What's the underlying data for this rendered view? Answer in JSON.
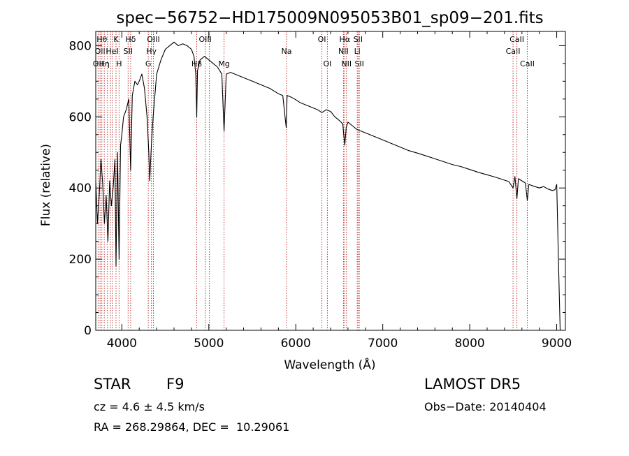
{
  "chart_data": {
    "type": "line",
    "title": "spec−56752−HD175009N095053B01_sp09−201.fits",
    "xlabel": "Wavelength (Å)",
    "ylabel": "Flux (relative)",
    "xlim": [
      3700,
      9100
    ],
    "ylim": [
      0,
      840
    ],
    "x_ticks": [
      4000,
      5000,
      6000,
      7000,
      8000,
      9000
    ],
    "y_ticks": [
      0,
      200,
      400,
      600,
      800
    ],
    "grid": false,
    "line_color": "#000000",
    "marker_color": "#c03030",
    "series": [
      {
        "x": [
          3700,
          3720,
          3740,
          3760,
          3780,
          3800,
          3820,
          3840,
          3860,
          3880,
          3900,
          3920,
          3933,
          3950,
          3968,
          3985,
          4000,
          4020,
          4050,
          4080,
          4101,
          4120,
          4150,
          4180,
          4200,
          4230,
          4260,
          4290,
          4310,
          4320,
          4340,
          4360,
          4400,
          4450,
          4500,
          4550,
          4600,
          4650,
          4700,
          4750,
          4800,
          4830,
          4850,
          4861,
          4870,
          4900,
          4950,
          5000,
          5050,
          5100,
          5150,
          5175,
          5200,
          5250,
          5300,
          5400,
          5500,
          5600,
          5700,
          5800,
          5850,
          5890,
          5895,
          5900,
          5950,
          6000,
          6050,
          6100,
          6150,
          6200,
          6250,
          6300,
          6350,
          6400,
          6450,
          6500,
          6540,
          6563,
          6580,
          6600,
          6650,
          6700,
          6800,
          6900,
          7000,
          7100,
          7200,
          7300,
          7400,
          7500,
          7600,
          7700,
          7800,
          7900,
          8000,
          8100,
          8200,
          8300,
          8400,
          8450,
          8498,
          8520,
          8542,
          8560,
          8600,
          8640,
          8662,
          8680,
          8750,
          8800,
          8850,
          8900,
          8950,
          8980,
          9000,
          9020,
          9040
        ],
        "y": [
          420,
          300,
          380,
          480,
          410,
          300,
          380,
          250,
          420,
          350,
          400,
          480,
          180,
          500,
          200,
          520,
          550,
          600,
          620,
          650,
          450,
          660,
          700,
          690,
          700,
          720,
          680,
          600,
          500,
          420,
          520,
          600,
          720,
          760,
          790,
          800,
          810,
          800,
          805,
          800,
          790,
          770,
          720,
          600,
          730,
          760,
          770,
          760,
          750,
          740,
          720,
          560,
          720,
          725,
          720,
          710,
          700,
          690,
          680,
          665,
          660,
          570,
          620,
          660,
          655,
          648,
          640,
          635,
          630,
          625,
          620,
          612,
          620,
          615,
          600,
          590,
          580,
          520,
          570,
          585,
          575,
          565,
          555,
          545,
          535,
          525,
          515,
          505,
          498,
          490,
          482,
          474,
          466,
          460,
          452,
          444,
          437,
          430,
          422,
          418,
          400,
          432,
          370,
          426,
          420,
          414,
          365,
          410,
          404,
          400,
          404,
          397,
          393,
          395,
          410,
          200,
          0
        ]
      }
    ],
    "line_markers": [
      {
        "x": 3727,
        "label": "OII",
        "row": 2
      },
      {
        "x": 3750,
        "label": "OII",
        "row": 1
      },
      {
        "x": 3770,
        "label": "Hθ",
        "row": 0
      },
      {
        "x": 3798,
        "label": "Hη",
        "row": 2
      },
      {
        "x": 3835,
        "label": "",
        "row": 0
      },
      {
        "x": 3869,
        "label": "",
        "row": 0
      },
      {
        "x": 3889,
        "label": "HeI",
        "row": 1
      },
      {
        "x": 3933,
        "label": "K",
        "row": 0
      },
      {
        "x": 3968,
        "label": "H",
        "row": 2
      },
      {
        "x": 4072,
        "label": "SII",
        "row": 1
      },
      {
        "x": 4101,
        "label": "Hδ",
        "row": 0
      },
      {
        "x": 4304,
        "label": "G",
        "row": 2
      },
      {
        "x": 4340,
        "label": "Hγ",
        "row": 1
      },
      {
        "x": 4363,
        "label": "OIII",
        "row": 0
      },
      {
        "x": 4861,
        "label": "Hβ",
        "row": 2
      },
      {
        "x": 4959,
        "label": "OIII",
        "row": 0
      },
      {
        "x": 5007,
        "label": "",
        "row": 0
      },
      {
        "x": 5175,
        "label": "Mg",
        "row": 2
      },
      {
        "x": 5894,
        "label": "Na",
        "row": 1
      },
      {
        "x": 6300,
        "label": "OI",
        "row": 0
      },
      {
        "x": 6363,
        "label": "OI",
        "row": 2
      },
      {
        "x": 6548,
        "label": "NII",
        "row": 1
      },
      {
        "x": 6563,
        "label": "Hα",
        "row": 0
      },
      {
        "x": 6583,
        "label": "NII",
        "row": 2
      },
      {
        "x": 6707,
        "label": "Li",
        "row": 1
      },
      {
        "x": 6716,
        "label": "SII",
        "row": 0
      },
      {
        "x": 6731,
        "label": "SII",
        "row": 2
      },
      {
        "x": 8498,
        "label": "CaII",
        "row": 1
      },
      {
        "x": 8542,
        "label": "CaII",
        "row": 0
      },
      {
        "x": 8662,
        "label": "CaII",
        "row": 2
      }
    ]
  },
  "info": {
    "object_class": "STAR",
    "subclass": "F9",
    "survey": "LAMOST DR5",
    "redshift": "cz = 4.6 ± 4.5 km/s",
    "obs_date": "Obs−Date: 20140404",
    "coords": "RA = 268.29864, DEC =  10.29061"
  }
}
